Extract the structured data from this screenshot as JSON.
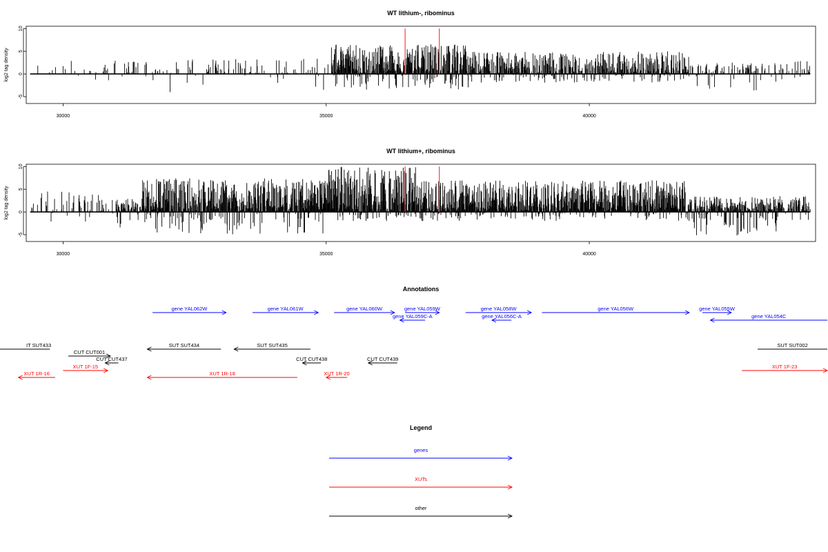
{
  "chart_data": [
    {
      "type": "bar",
      "title": "WT lithium-, ribominus",
      "ylabel": "log2 tag density",
      "xlim": [
        29300,
        44300
      ],
      "ylim": [
        -6.5,
        10.5
      ],
      "x_ticks": [
        30000,
        35000,
        40000
      ],
      "y_ticks": [
        10,
        5,
        0,
        -5
      ],
      "grid": false,
      "profile": [
        {
          "from": 29400,
          "to": 31500,
          "pos_max": 3,
          "neg_max": 2,
          "density": 0.12
        },
        {
          "from": 31500,
          "to": 35100,
          "pos_max": 3.5,
          "neg_max": 4,
          "density": 0.18
        },
        {
          "from": 35100,
          "to": 37700,
          "pos_max": 6.5,
          "neg_max": 3.5,
          "density": 0.95
        },
        {
          "from": 37700,
          "to": 41900,
          "pos_max": 5,
          "neg_max": 2,
          "density": 0.8
        },
        {
          "from": 41900,
          "to": 43700,
          "pos_max": 2.5,
          "neg_max": 4,
          "density": 0.35
        },
        {
          "from": 43700,
          "to": 44200,
          "pos_max": 3,
          "neg_max": 1,
          "density": 0.2
        }
      ],
      "markers": [
        {
          "x": 36500,
          "value": 10,
          "color": "#ff3b3b"
        },
        {
          "x": 37150,
          "value": 10,
          "color": "#ff3b3b"
        }
      ]
    },
    {
      "type": "bar",
      "title": "WT lithium+, ribominus",
      "ylabel": "log2 tag density",
      "xlim": [
        29300,
        44300
      ],
      "ylim": [
        -6.5,
        10.5
      ],
      "x_ticks": [
        30000,
        35000,
        40000
      ],
      "y_ticks": [
        10,
        5,
        0,
        -5
      ],
      "grid": false,
      "profile": [
        {
          "from": 29400,
          "to": 31000,
          "pos_max": 4.5,
          "neg_max": 2.5,
          "density": 0.25
        },
        {
          "from": 31000,
          "to": 31500,
          "pos_max": 3,
          "neg_max": 5,
          "density": 0.9
        },
        {
          "from": 31500,
          "to": 35000,
          "pos_max": 7.5,
          "neg_max": 5,
          "density": 1.0
        },
        {
          "from": 35000,
          "to": 36700,
          "pos_max": 10,
          "neg_max": 2,
          "density": 1.0
        },
        {
          "from": 36700,
          "to": 41900,
          "pos_max": 7,
          "neg_max": 2,
          "density": 1.0
        },
        {
          "from": 41900,
          "to": 43700,
          "pos_max": 3.5,
          "neg_max": 5.5,
          "density": 0.9
        },
        {
          "from": 43700,
          "to": 44200,
          "pos_max": 3.5,
          "neg_max": 2,
          "density": 0.6
        }
      ],
      "markers": [
        {
          "x": 36500,
          "value": 10,
          "color": "#ff3b3b"
        },
        {
          "x": 37150,
          "value": 10,
          "color": "#ff3b3b"
        }
      ]
    }
  ],
  "annotations": {
    "title": "Annotations",
    "xlim": [
      29300,
      44300
    ],
    "colors": {
      "genes": "#0000ff",
      "XUTs": "#ff0000",
      "other": "#000000"
    },
    "features": [
      {
        "label": "gene YAL062W",
        "start": 31700,
        "end": 33100,
        "strand": "+",
        "row": 0,
        "kind": "genes"
      },
      {
        "label": "gene YAL061W",
        "start": 33600,
        "end": 34850,
        "strand": "+",
        "row": 0,
        "kind": "genes"
      },
      {
        "label": "gene YAL060W",
        "start": 35150,
        "end": 36300,
        "strand": "+",
        "row": 0,
        "kind": "genes"
      },
      {
        "label": "gene YAL059W",
        "start": 36500,
        "end": 37150,
        "strand": "+",
        "row": 0,
        "kind": "genes"
      },
      {
        "label": "gene YAL059C-A",
        "start": 36400,
        "end": 36880,
        "strand": "-",
        "row": 1,
        "kind": "genes"
      },
      {
        "label": "gene YAL058W",
        "start": 37650,
        "end": 38900,
        "strand": "+",
        "row": 0,
        "kind": "genes"
      },
      {
        "label": "gene YAL056C-A",
        "start": 38150,
        "end": 38520,
        "strand": "-",
        "row": 1,
        "kind": "genes"
      },
      {
        "label": "gene YAL056W",
        "start": 39100,
        "end": 41900,
        "strand": "+",
        "row": 0,
        "kind": "genes"
      },
      {
        "label": "gene YAL055W",
        "start": 42150,
        "end": 42700,
        "strand": "+",
        "row": 0,
        "kind": "genes"
      },
      {
        "label": "gene YAL054C",
        "start": 42300,
        "end": 44800,
        "strand": "-",
        "row": 1,
        "kind": "genes"
      },
      {
        "label": "IT SUT433",
        "start": 28700,
        "end": 29750,
        "strand": "none",
        "row": 2,
        "kind": "other"
      },
      {
        "label": "SUT SUT434",
        "start": 31600,
        "end": 33000,
        "strand": "-",
        "row": 2,
        "kind": "other"
      },
      {
        "label": "SUT SUT435",
        "start": 33250,
        "end": 34700,
        "strand": "-",
        "row": 2,
        "kind": "other"
      },
      {
        "label": "SUT SUT002",
        "start": 43200,
        "end": 44900,
        "strand": "none",
        "row": 2,
        "kind": "other"
      },
      {
        "label": "CUT CUT001",
        "start": 30100,
        "end": 30900,
        "strand": "+",
        "row": 3,
        "kind": "other"
      },
      {
        "label": "CUT CUT437",
        "start": 30800,
        "end": 31050,
        "strand": "-",
        "row": 4,
        "kind": "other"
      },
      {
        "label": "CUT CUT438",
        "start": 34550,
        "end": 34900,
        "strand": "-",
        "row": 4,
        "kind": "other"
      },
      {
        "label": "CUT CUT439",
        "start": 35800,
        "end": 36350,
        "strand": "-",
        "row": 4,
        "kind": "other"
      },
      {
        "label": "XUT 1F-15",
        "start": 30000,
        "end": 30850,
        "strand": "+",
        "row": 5,
        "kind": "XUTs"
      },
      {
        "label": "XUT 1R-16",
        "start": 29150,
        "end": 29850,
        "strand": "-",
        "row": 6,
        "kind": "XUTs"
      },
      {
        "label": "XUT 1R-18",
        "start": 31600,
        "end": 34450,
        "strand": "-",
        "row": 6,
        "kind": "XUTs"
      },
      {
        "label": "XUT 1R-20",
        "start": 35000,
        "end": 35400,
        "strand": "-",
        "row": 6,
        "kind": "XUTs"
      },
      {
        "label": "XUT 1F-23",
        "start": 42900,
        "end": 44900,
        "strand": "+",
        "row": 5,
        "kind": "XUTs"
      }
    ]
  },
  "legend": {
    "title": "Legend",
    "entries": [
      {
        "label": "genes",
        "color": "#0000ff"
      },
      {
        "label": "XUTs",
        "color": "#ff0000"
      },
      {
        "label": "other",
        "color": "#000000"
      }
    ]
  }
}
